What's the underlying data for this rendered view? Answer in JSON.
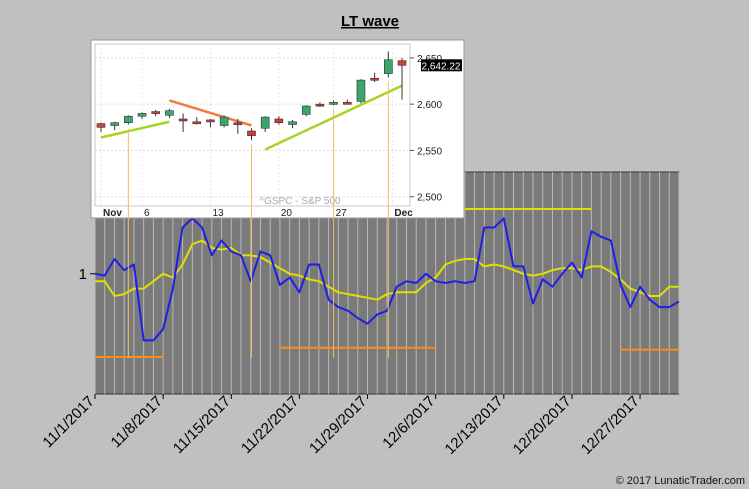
{
  "chart_data": [
    {
      "type": "line",
      "title": "LT wave",
      "x_ticks": [
        "11/1/2017",
        "11/8/2017",
        "11/15/2017",
        "11/22/2017",
        "11/29/2017",
        "12/6/2017",
        "12/13/2017",
        "12/20/2017",
        "12/27/2017"
      ],
      "y_ticks": [
        "1"
      ],
      "x": [
        "11/1",
        "11/2",
        "11/3",
        "11/4",
        "11/5",
        "11/6",
        "11/7",
        "11/8",
        "11/9",
        "11/10",
        "11/11",
        "11/12",
        "11/13",
        "11/14",
        "11/15",
        "11/16",
        "11/17",
        "11/18",
        "11/19",
        "11/20",
        "11/21",
        "11/22",
        "11/23",
        "11/24",
        "11/25",
        "11/26",
        "11/27",
        "11/28",
        "11/29",
        "11/30",
        "12/1",
        "12/2",
        "12/3",
        "12/4",
        "12/5",
        "12/6",
        "12/7",
        "12/8",
        "12/9",
        "12/10",
        "12/11",
        "12/12",
        "12/13",
        "12/14",
        "12/15",
        "12/16",
        "12/17",
        "12/18",
        "12/19",
        "12/20",
        "12/21",
        "12/22",
        "12/23",
        "12/24",
        "12/25",
        "12/26",
        "12/27",
        "12/28",
        "12/29",
        "12/30",
        "12/31"
      ],
      "series": [
        {
          "color": "#1f1fe6",
          "values": [
            1.0,
            0.99,
            1.08,
            1.02,
            1.05,
            0.64,
            0.64,
            0.7,
            0.92,
            1.25,
            1.3,
            1.25,
            1.1,
            1.18,
            1.12,
            1.1,
            0.96,
            1.12,
            1.1,
            0.94,
            0.98,
            0.9,
            1.05,
            1.05,
            0.86,
            0.82,
            0.8,
            0.76,
            0.73,
            0.78,
            0.8,
            0.93,
            0.96,
            0.95,
            1.0,
            0.96,
            0.95,
            0.96,
            0.95,
            0.96,
            1.25,
            1.25,
            1.3,
            1.04,
            1.04,
            0.84,
            0.97,
            0.93,
            1.0,
            1.06,
            0.98,
            1.23,
            1.2,
            1.18,
            0.94,
            0.82,
            0.93,
            0.86,
            0.82,
            0.82,
            0.85
          ]
        },
        {
          "color": "#e0e000",
          "values": [
            0.96,
            0.96,
            0.88,
            0.89,
            0.92,
            0.92,
            0.96,
            1.0,
            0.98,
            1.05,
            1.16,
            1.18,
            1.14,
            1.13,
            1.14,
            1.1,
            1.1,
            1.09,
            1.06,
            1.03,
            1.0,
            0.99,
            0.97,
            0.96,
            0.93,
            0.9,
            0.89,
            0.88,
            0.87,
            0.86,
            0.89,
            0.9,
            0.9,
            0.9,
            0.95,
            0.98,
            1.05,
            1.07,
            1.08,
            1.08,
            1.04,
            1.05,
            1.04,
            1.02,
            1.0,
            0.99,
            1.0,
            1.02,
            1.03,
            1.03,
            1.02,
            1.04,
            1.04,
            1.01,
            0.97,
            0.92,
            0.9,
            0.88,
            0.88,
            0.93,
            0.93
          ]
        }
      ],
      "bands": [
        {
          "color": "#e0e000",
          "from": "11/9",
          "to": "11/18",
          "level": 1.34
        },
        {
          "color": "#e0e000",
          "from": "12/6",
          "to": "12/22",
          "level": 1.35
        },
        {
          "color": "#ff8c1a",
          "from": "11/1",
          "to": "11/8",
          "level": 0.55
        },
        {
          "color": "#ff8c1a",
          "from": "11/20",
          "to": "12/6",
          "level": 0.6
        },
        {
          "color": "#ff8c1a",
          "from": "12/25",
          "to": "12/31",
          "level": 0.59
        }
      ],
      "ylim": [
        0.35,
        1.55
      ],
      "grid": true
    },
    {
      "type": "candlestick",
      "watermark": "^GSPC - S&P 500",
      "y_ticks": [
        2500,
        2550,
        2600,
        2650
      ],
      "x_labels": [
        "Nov",
        "6",
        "13",
        "20",
        "27",
        "Dec"
      ],
      "last_price": "2,642.22",
      "ylim": [
        2490,
        2665
      ],
      "candles": [
        {
          "o": 2575,
          "h": 2580,
          "l": 2570,
          "c": 2579,
          "up": false
        },
        {
          "o": 2577,
          "h": 2581,
          "l": 2572,
          "c": 2580,
          "up": true
        },
        {
          "o": 2580,
          "h": 2588,
          "l": 2578,
          "c": 2587,
          "up": true
        },
        {
          "o": 2587,
          "h": 2591,
          "l": 2584,
          "c": 2590,
          "up": true
        },
        {
          "o": 2590,
          "h": 2594,
          "l": 2587,
          "c": 2592,
          "up": false
        },
        {
          "o": 2588,
          "h": 2595,
          "l": 2585,
          "c": 2593,
          "up": true
        },
        {
          "o": 2584,
          "h": 2590,
          "l": 2570,
          "c": 2584,
          "up": false
        },
        {
          "o": 2580,
          "h": 2586,
          "l": 2578,
          "c": 2581,
          "up": false
        },
        {
          "o": 2582,
          "h": 2584,
          "l": 2575,
          "c": 2583,
          "up": false
        },
        {
          "o": 2577,
          "h": 2588,
          "l": 2575,
          "c": 2586,
          "up": true
        },
        {
          "o": 2578,
          "h": 2584,
          "l": 2568,
          "c": 2580,
          "up": false
        },
        {
          "o": 2571,
          "h": 2574,
          "l": 2561,
          "c": 2566,
          "up": false
        },
        {
          "o": 2574,
          "h": 2587,
          "l": 2570,
          "c": 2586,
          "up": true
        },
        {
          "o": 2584,
          "h": 2587,
          "l": 2578,
          "c": 2580,
          "up": false
        },
        {
          "o": 2578,
          "h": 2583,
          "l": 2574,
          "c": 2581,
          "up": true
        },
        {
          "o": 2589,
          "h": 2599,
          "l": 2587,
          "c": 2598,
          "up": true
        },
        {
          "o": 2598,
          "h": 2602,
          "l": 2597,
          "c": 2600,
          "up": false
        },
        {
          "o": 2601,
          "h": 2604,
          "l": 2599,
          "c": 2602,
          "up": true
        },
        {
          "o": 2602,
          "h": 2605,
          "l": 2600,
          "c": 2601,
          "up": false
        },
        {
          "o": 2603,
          "h": 2627,
          "l": 2601,
          "c": 2626,
          "up": true
        },
        {
          "o": 2628,
          "h": 2634,
          "l": 2624,
          "c": 2626,
          "up": false
        },
        {
          "o": 2633,
          "h": 2657,
          "l": 2629,
          "c": 2648,
          "up": true
        },
        {
          "o": 2647,
          "h": 2650,
          "l": 2605,
          "c": 2642,
          "up": false
        }
      ],
      "trendlines": [
        {
          "color": "#a6d51f",
          "from": [
            0,
            2564
          ],
          "to": [
            5,
            2581
          ]
        },
        {
          "color": "#f07a3c",
          "from": [
            5,
            2604
          ],
          "to": [
            11,
            2577
          ]
        },
        {
          "color": "#a6d51f",
          "from": [
            12,
            2551
          ],
          "to": [
            22,
            2620
          ]
        }
      ]
    }
  ],
  "footer": "© 2017 LunaticTrader.com"
}
